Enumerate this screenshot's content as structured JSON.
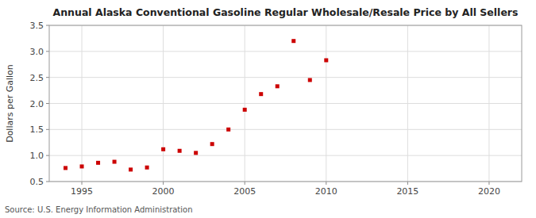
{
  "chart_data": {
    "type": "scatter",
    "title": "Annual Alaska Conventional Gasoline Regular Wholesale/Resale Price by All Sellers",
    "y_label": "Dollars per Gallon",
    "source": "Source: U.S. Energy Information Administration",
    "x": [
      1994,
      1995,
      1996,
      1997,
      1998,
      1999,
      2000,
      2001,
      2002,
      2003,
      2004,
      2005,
      2006,
      2007,
      2008,
      2009,
      2010
    ],
    "values": [
      0.76,
      0.79,
      0.86,
      0.88,
      0.73,
      0.77,
      1.12,
      1.09,
      1.05,
      1.22,
      1.5,
      1.88,
      2.18,
      2.33,
      3.2,
      2.45,
      2.83
    ],
    "color": "#cc0000",
    "marker": "square",
    "xlim": [
      1993,
      2022
    ],
    "ylim": [
      0.5,
      3.5
    ],
    "xticks": [
      1995,
      2000,
      2005,
      2010,
      2015,
      2020
    ],
    "yticks": [
      0.5,
      {
        "value": 1,
        "label": "1.0"
      },
      1.5,
      {
        "value": 2,
        "label": "2.0"
      },
      2.5,
      {
        "value": 3,
        "label": "3.0"
      },
      3.5
    ],
    "grid": true
  }
}
